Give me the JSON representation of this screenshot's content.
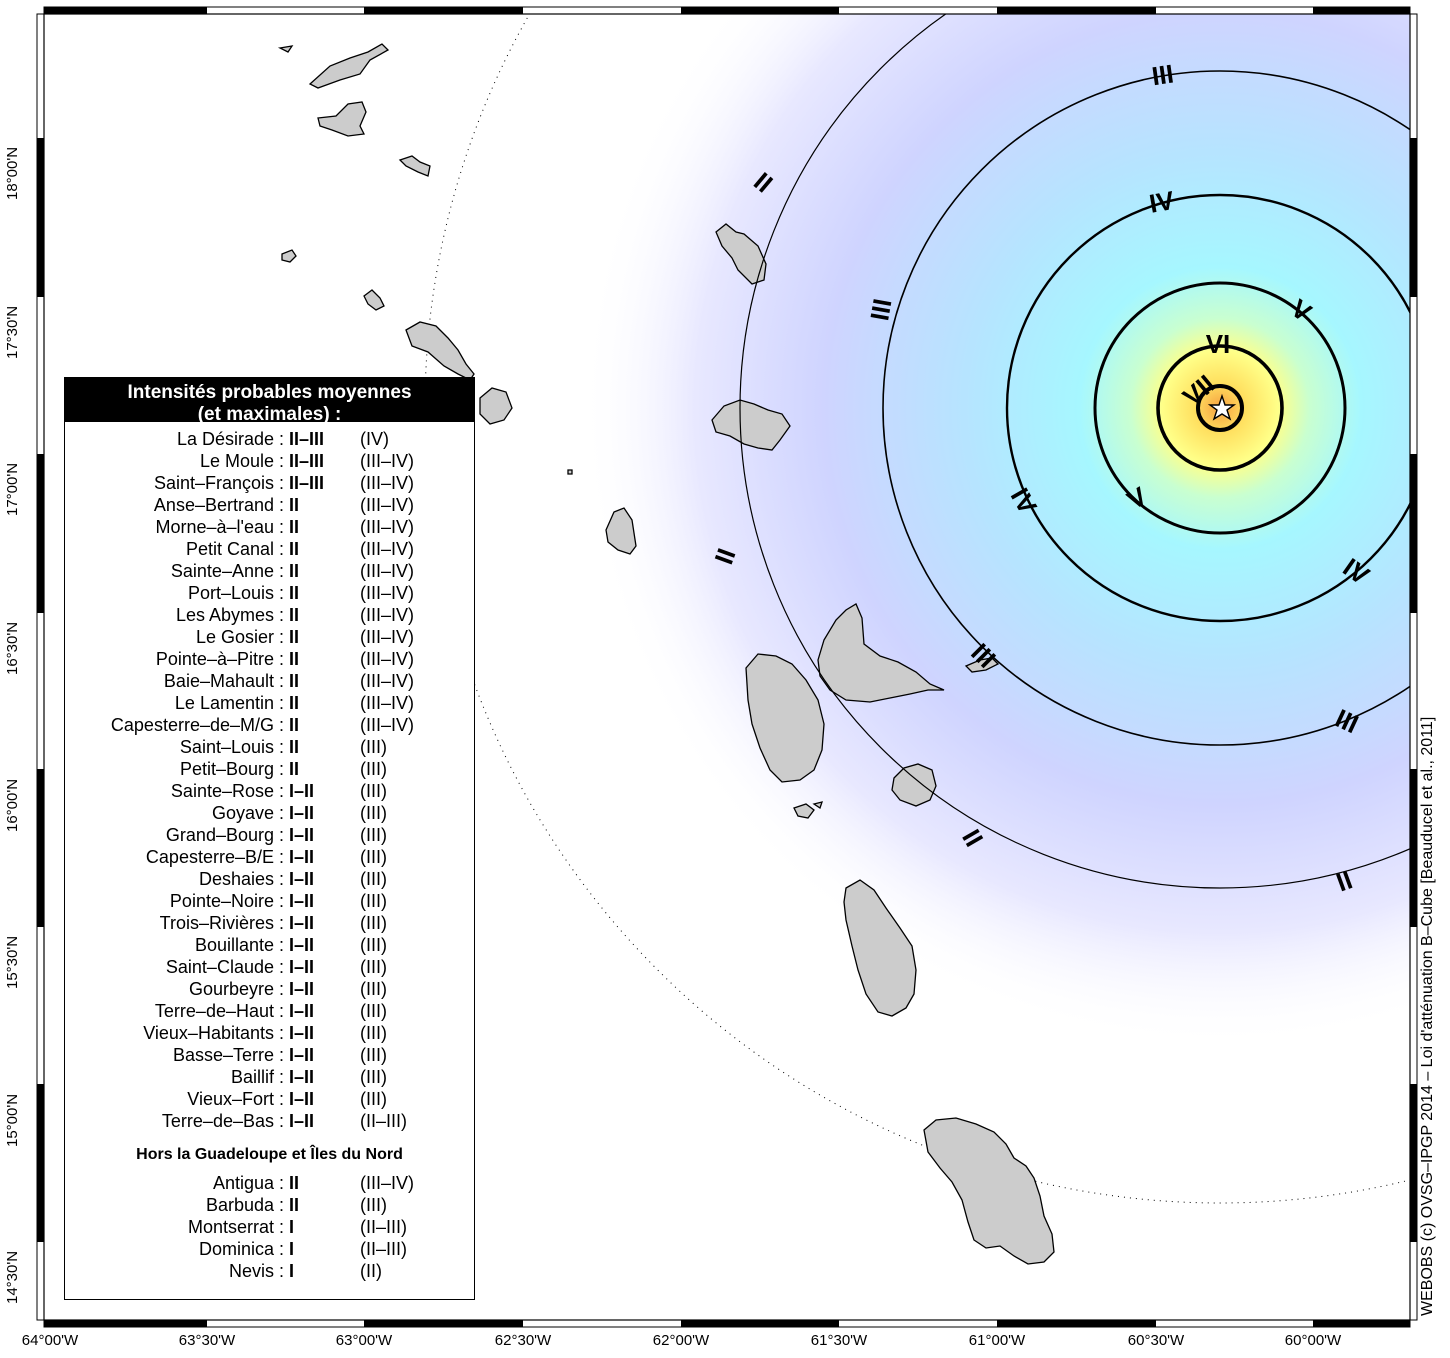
{
  "map": {
    "lon_ticks": [
      "64°00'W",
      "63°30'W",
      "63°00'W",
      "62°30'W",
      "62°00'W",
      "61°30'W",
      "61°00'W",
      "60°30'W",
      "60°00'W"
    ],
    "lat_ticks": [
      "18°00'N",
      "17°30'N",
      "17°00'N",
      "16°30'N",
      "16°00'N",
      "15°30'N",
      "15°00'N",
      "14°30'N"
    ],
    "epicenter_marker": "star-icon",
    "isoseist_labels": [
      "VII",
      "VI",
      "V",
      "V",
      "IV",
      "IV",
      "IV",
      "III",
      "III",
      "III",
      "III",
      "II",
      "II",
      "II",
      "II"
    ],
    "islands": [
      "anguilla",
      "saint-martin",
      "saint-barthelemy",
      "saba",
      "sint-eustatius",
      "saint-kitts",
      "nevis",
      "redonda",
      "montserrat",
      "barbuda",
      "antigua",
      "guadeloupe",
      "la-desirade",
      "marie-galante",
      "les-saintes",
      "dominica",
      "martinique"
    ],
    "colors": {
      "land": "#cccccc",
      "epicenter_fill": "#ffd55a",
      "outer_fill": "#c9c9ff",
      "ring": "#000000"
    }
  },
  "legend": {
    "title_line1": "Intensités probables moyennes",
    "title_line2": "(et maximales) :",
    "rows": [
      {
        "place": "La Désirade :",
        "mean": "II–III",
        "max": "(IV)"
      },
      {
        "place": "Le Moule :",
        "mean": "II–III",
        "max": "(III–IV)"
      },
      {
        "place": "Saint–François :",
        "mean": "II–III",
        "max": "(III–IV)"
      },
      {
        "place": "Anse–Bertrand :",
        "mean": "II",
        "max": "(III–IV)"
      },
      {
        "place": "Morne–à–l'eau :",
        "mean": "II",
        "max": "(III–IV)"
      },
      {
        "place": "Petit Canal :",
        "mean": "II",
        "max": "(III–IV)"
      },
      {
        "place": "Sainte–Anne :",
        "mean": "II",
        "max": "(III–IV)"
      },
      {
        "place": "Port–Louis :",
        "mean": "II",
        "max": "(III–IV)"
      },
      {
        "place": "Les Abymes :",
        "mean": "II",
        "max": "(III–IV)"
      },
      {
        "place": "Le Gosier :",
        "mean": "II",
        "max": "(III–IV)"
      },
      {
        "place": "Pointe–à–Pitre :",
        "mean": "II",
        "max": "(III–IV)"
      },
      {
        "place": "Baie–Mahault :",
        "mean": "II",
        "max": "(III–IV)"
      },
      {
        "place": "Le Lamentin :",
        "mean": "II",
        "max": "(III–IV)"
      },
      {
        "place": "Capesterre–de–M/G :",
        "mean": "II",
        "max": "(III–IV)"
      },
      {
        "place": "Saint–Louis :",
        "mean": "II",
        "max": "(III)"
      },
      {
        "place": "Petit–Bourg :",
        "mean": "II",
        "max": "(III)"
      },
      {
        "place": "Sainte–Rose :",
        "mean": "I–II",
        "max": "(III)"
      },
      {
        "place": "Goyave :",
        "mean": "I–II",
        "max": "(III)"
      },
      {
        "place": "Grand–Bourg :",
        "mean": "I–II",
        "max": "(III)"
      },
      {
        "place": "Capesterre–B/E :",
        "mean": "I–II",
        "max": "(III)"
      },
      {
        "place": "Deshaies :",
        "mean": "I–II",
        "max": "(III)"
      },
      {
        "place": "Pointe–Noire :",
        "mean": "I–II",
        "max": "(III)"
      },
      {
        "place": "Trois–Rivières :",
        "mean": "I–II",
        "max": "(III)"
      },
      {
        "place": "Bouillante :",
        "mean": "I–II",
        "max": "(III)"
      },
      {
        "place": "Saint–Claude :",
        "mean": "I–II",
        "max": "(III)"
      },
      {
        "place": "Gourbeyre :",
        "mean": "I–II",
        "max": "(III)"
      },
      {
        "place": "Terre–de–Haut :",
        "mean": "I–II",
        "max": "(III)"
      },
      {
        "place": "Vieux–Habitants :",
        "mean": "I–II",
        "max": "(III)"
      },
      {
        "place": "Basse–Terre :",
        "mean": "I–II",
        "max": "(III)"
      },
      {
        "place": "Baillif :",
        "mean": "I–II",
        "max": "(III)"
      },
      {
        "place": "Vieux–Fort :",
        "mean": "I–II",
        "max": "(III)"
      },
      {
        "place": "Terre–de–Bas :",
        "mean": "I–II",
        "max": "(II–III)"
      }
    ],
    "subtitle": "Hors la Guadeloupe et Îles du Nord",
    "rows2": [
      {
        "place": "Antigua :",
        "mean": "II",
        "max": "(III–IV)"
      },
      {
        "place": "Barbuda :",
        "mean": "II",
        "max": "(III)"
      },
      {
        "place": "Montserrat :",
        "mean": "I",
        "max": "(II–III)"
      },
      {
        "place": "Dominica :",
        "mean": "I",
        "max": "(II–III)"
      },
      {
        "place": "Nevis :",
        "mean": "I",
        "max": "(II)"
      }
    ]
  },
  "credit": "WEBOBS (c) OVSG–IPGP 2014 – Loi d'atténuation B–Cube [Beauducel et al., 2011]"
}
